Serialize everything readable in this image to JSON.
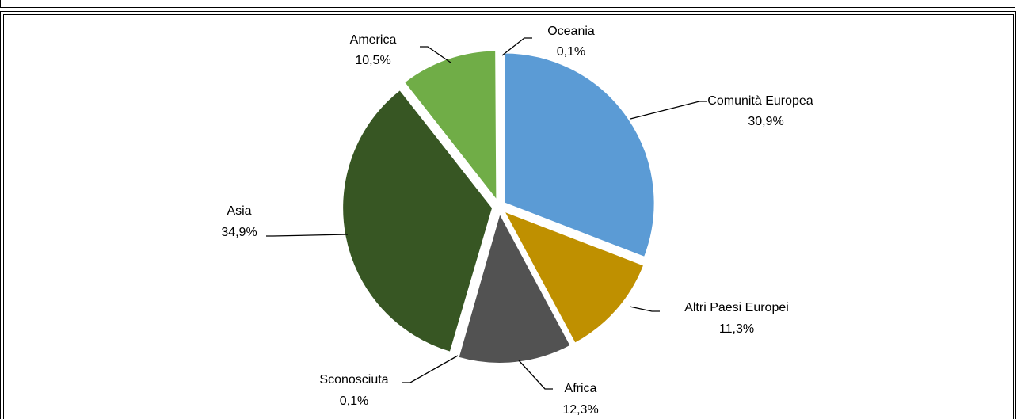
{
  "chart_data": {
    "type": "pie",
    "title": "",
    "slices": [
      {
        "label": "Comunità Europea",
        "value": 30.9,
        "display": "30,9%",
        "color": "#5b9bd5"
      },
      {
        "label": "Altri Paesi Europei",
        "value": 11.3,
        "display": "11,3%",
        "color": "#bf9000"
      },
      {
        "label": "Africa",
        "value": 12.3,
        "display": "12,3%",
        "color": "#525252"
      },
      {
        "label": "Sconosciuta",
        "value": 0.1,
        "display": "0,1%",
        "color": "#a5a5a5"
      },
      {
        "label": "Asia",
        "value": 34.9,
        "display": "34,9%",
        "color": "#375623"
      },
      {
        "label": "America",
        "value": 10.5,
        "display": "10,5%",
        "color": "#70ad47"
      },
      {
        "label": "Oceania",
        "value": 0.1,
        "display": "0,1%",
        "color": "#4472c4"
      }
    ],
    "start_angle": "12 o'clock",
    "direction": "clockwise",
    "exploded": true,
    "legend": "none"
  }
}
